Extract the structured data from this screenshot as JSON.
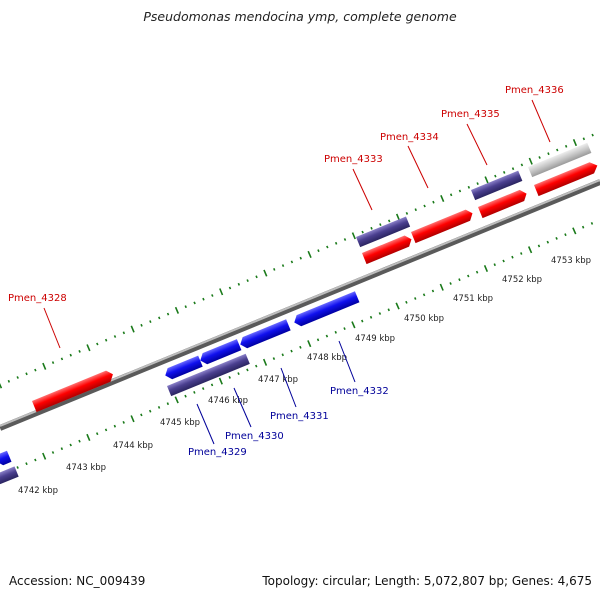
{
  "title": "Pseudomonas mendocina ymp, complete genome",
  "footer": {
    "accession": "Accession: NC_009439",
    "summary": "Topology: circular; Length: 5,072,807 bp; Genes: 4,675"
  },
  "colors": {
    "forward_gene": "#ff0000",
    "reverse_gene": "#1a1aee",
    "forward_label": "#cc0000",
    "reverse_label": "#000099",
    "operon": "#4a3f8f",
    "pseudo": "#c8c8c8",
    "backbone": "#8a8a8a",
    "ticks": "#1a7a1a"
  },
  "scale_labels": [
    "4742 kbp",
    "4743 kbp",
    "4744 kbp",
    "4745 kbp",
    "4746 kbp",
    "4747 kbp",
    "4748 kbp",
    "4749 kbp",
    "4750 kbp",
    "4751 kbp",
    "4752 kbp",
    "4753 kbp"
  ],
  "forward_genes": [
    "Pmen_4328",
    "Pmen_4333",
    "Pmen_4334",
    "Pmen_4335",
    "Pmen_4336"
  ],
  "reverse_genes": [
    "Pmen_4329",
    "Pmen_4330",
    "Pmen_4331",
    "Pmen_4332"
  ]
}
